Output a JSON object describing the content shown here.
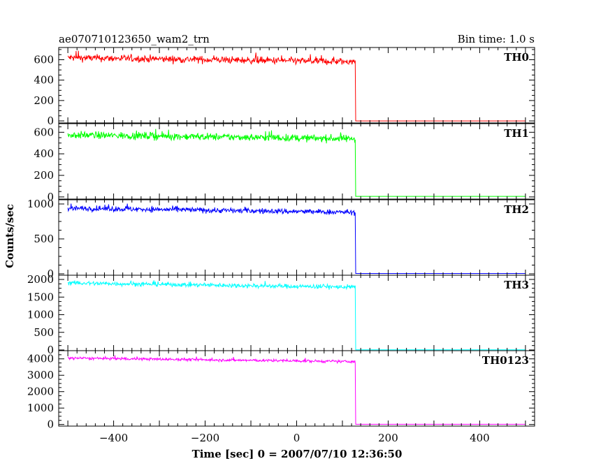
{
  "chart_data": {
    "type": "line",
    "title": "ae070710123650_wam2_trn",
    "bin_time": "Bin time: 1.0 s",
    "xlabel": "Time [sec] 0 = 2007/07/10 12:36:50",
    "ylabel": "Counts/sec",
    "xlim": [
      -520,
      520
    ],
    "x_ticks": [
      -400,
      -200,
      0,
      200,
      400
    ],
    "drop_time": 128,
    "data_start": -500,
    "data_end": 500,
    "panels": [
      {
        "name": "TH0",
        "color": "#ff0000",
        "ylim": [
          -20,
          720
        ],
        "y_ticks": [
          0,
          200,
          400,
          600
        ],
        "level_start": 620,
        "level_end": 580,
        "noise": 25,
        "after_drop": 0
      },
      {
        "name": "TH1",
        "color": "#00ff00",
        "ylim": [
          -20,
          680
        ],
        "y_ticks": [
          0,
          200,
          400,
          600
        ],
        "level_start": 575,
        "level_end": 540,
        "noise": 24,
        "after_drop": 5
      },
      {
        "name": "TH2",
        "color": "#0000ff",
        "ylim": [
          -20,
          1060
        ],
        "y_ticks": [
          0,
          500,
          1000
        ],
        "level_start": 940,
        "level_end": 880,
        "noise": 28,
        "after_drop": 5
      },
      {
        "name": "TH3",
        "color": "#00ffff",
        "ylim": [
          -20,
          2120
        ],
        "y_ticks": [
          0,
          500,
          1000,
          1500,
          2000
        ],
        "level_start": 1900,
        "level_end": 1780,
        "noise": 45,
        "after_drop": 5
      },
      {
        "name": "TH0123",
        "color": "#ff00ff",
        "ylim": [
          -100,
          4500
        ],
        "y_ticks": [
          0,
          1000,
          2000,
          3000,
          4000
        ],
        "level_start": 4050,
        "level_end": 3830,
        "noise": 60,
        "after_drop": 10
      }
    ]
  }
}
